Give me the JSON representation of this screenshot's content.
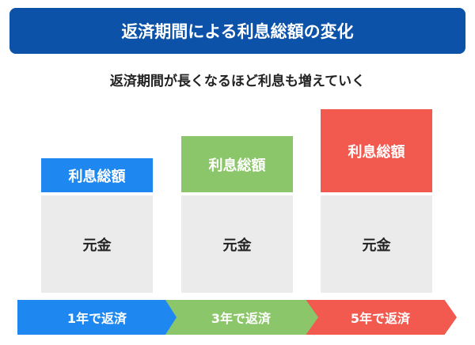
{
  "title": "返済期間による利息総額の変化",
  "subtitle": "返済期間が長くなるほど利息も増えていく",
  "colors": {
    "title_bg": "#0b52a8",
    "blue": "#1e88f0",
    "green": "#8cc66a",
    "red": "#f25a50",
    "principal": "#ebebeb"
  },
  "columns": [
    {
      "interest_label": "利息総額",
      "principal_label": "元金",
      "period_label": "1年で返済"
    },
    {
      "interest_label": "利息総額",
      "principal_label": "元金",
      "period_label": "3年で返済"
    },
    {
      "interest_label": "利息総額",
      "principal_label": "元金",
      "period_label": "5年で返済"
    }
  ]
}
